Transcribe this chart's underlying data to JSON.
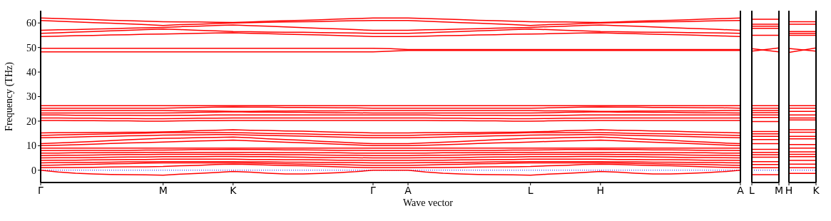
{
  "chart_data": [
    {
      "type": "line",
      "xlabel": "Wave vector",
      "ylabel": "Frequency (THz)",
      "color": "#ff0000",
      "line_style": "solid",
      "categories": [
        "Γ",
        null,
        null,
        null,
        null,
        null,
        null,
        "M",
        null,
        null,
        null,
        "K",
        null,
        null,
        null,
        null,
        null,
        null,
        null,
        "Γ",
        null,
        "A",
        null,
        null,
        null,
        null,
        null,
        null,
        "L",
        null,
        null,
        null,
        "H",
        null,
        null,
        null,
        null,
        null,
        null,
        null,
        "A"
      ],
      "ylim": [
        -5,
        65
      ],
      "yticks": [
        0,
        10,
        20,
        30,
        40,
        50,
        60
      ],
      "ref_lines": [
        {
          "axis": "y",
          "value": 0,
          "color": "#0000ff",
          "line_style": "dotted"
        }
      ],
      "series": [
        {
          "values": [
            62,
            61.8,
            61.6,
            61.4,
            61.1,
            60.9,
            60.7,
            60.5,
            60.4,
            60.4,
            60.3,
            60.2,
            60.4,
            60.7,
            60.9,
            61.1,
            61.3,
            61.6,
            61.8,
            62,
            62,
            62,
            61.8,
            61.6,
            61.4,
            61.1,
            60.9,
            60.7,
            60.5,
            60.4,
            60.4,
            60.3,
            60.2,
            60.4,
            60.7,
            60.9,
            61.1,
            61.3,
            61.6,
            61.8,
            62
          ]
        },
        {
          "values": [
            61,
            60.7,
            60.4,
            60.1,
            59.9,
            59.6,
            59.3,
            59,
            59.3,
            59.5,
            59.8,
            60,
            60.1,
            60.3,
            60.4,
            60.5,
            60.6,
            60.8,
            60.9,
            61,
            61,
            61,
            60.7,
            60.4,
            60.1,
            59.9,
            59.6,
            59.3,
            59,
            59.3,
            59.5,
            59.8,
            60,
            60.1,
            60.3,
            60.4,
            60.5,
            60.6,
            60.8,
            60.9,
            61
          ]
        },
        {
          "values": [
            57,
            57.2,
            57.3,
            57.5,
            57.7,
            57.9,
            58,
            58.2,
            58.5,
            58.7,
            59,
            59.2,
            58.9,
            58.7,
            58.4,
            58.1,
            57.8,
            57.6,
            57.3,
            57,
            57,
            57,
            57.2,
            57.3,
            57.5,
            57.7,
            57.9,
            58,
            58.2,
            58.5,
            58.7,
            59,
            59.2,
            58.9,
            58.7,
            58.4,
            58.1,
            57.8,
            57.6,
            57.3,
            57
          ]
        },
        {
          "values": [
            55.8,
            56,
            56.3,
            56.5,
            56.8,
            57,
            57.3,
            57.5,
            57.3,
            57,
            56.8,
            56.5,
            56.4,
            56.3,
            56.2,
            56.2,
            56.1,
            56,
            55.9,
            55.8,
            55.8,
            55.8,
            56,
            56.3,
            56.5,
            56.8,
            57,
            57.3,
            57.5,
            57.3,
            57,
            56.8,
            56.5,
            56.4,
            56.3,
            56.2,
            56.2,
            56.1,
            56,
            55.9,
            55.8
          ]
        },
        {
          "values": [
            54.5,
            54.6,
            54.8,
            54.9,
            55.1,
            55.2,
            55.4,
            55.5,
            55.6,
            55.8,
            55.9,
            56,
            55.8,
            55.6,
            55.4,
            55.3,
            55.1,
            54.9,
            54.7,
            54.5,
            54.5,
            54.5,
            54.6,
            54.8,
            54.9,
            55.1,
            55.2,
            55.4,
            55.5,
            55.6,
            55.8,
            55.9,
            56,
            55.8,
            55.6,
            55.4,
            55.3,
            55.1,
            54.9,
            54.7,
            54.5
          ]
        },
        {
          "values": [
            49.7,
            49.7,
            49.7,
            49.7,
            49.7,
            49.7,
            49.7,
            49.7,
            49.7,
            49.7,
            49.7,
            49.7,
            49.7,
            49.7,
            49.7,
            49.7,
            49.7,
            49.7,
            49.7,
            49.7,
            49.5,
            49.2,
            49.2,
            49.2,
            49.2,
            49.2,
            49.2,
            49.2,
            49.2,
            49.2,
            49.2,
            49.2,
            49.2,
            49.2,
            49.2,
            49.2,
            49.2,
            49.2,
            49.2,
            49.2,
            49.2
          ]
        },
        {
          "values": [
            48.2,
            48.2,
            48.2,
            48.2,
            48.2,
            48.2,
            48.2,
            48.2,
            48.2,
            48.2,
            48.2,
            48.2,
            48.2,
            48.2,
            48.2,
            48.2,
            48.2,
            48.2,
            48.2,
            48.2,
            48.5,
            48.8,
            48.8,
            48.8,
            48.8,
            48.8,
            48.8,
            48.8,
            48.8,
            48.8,
            48.8,
            48.8,
            48.8,
            48.8,
            48.8,
            48.8,
            48.8,
            48.8,
            48.8,
            48.8,
            48.8
          ]
        },
        {
          "values": [
            26.3,
            26.3,
            26.3,
            26.3,
            26.3,
            26.3,
            26.3,
            26.3,
            26.3,
            26.3,
            26.3,
            26.3,
            26.3,
            26.3,
            26.3,
            26.3,
            26.3,
            26.3,
            26.3,
            26.3,
            26.3,
            26.3,
            26.3,
            26.3,
            26.3,
            26.3,
            26.3,
            26.3,
            26.3,
            26.3,
            26.3,
            26.3,
            26.3,
            26.3,
            26.3,
            26.3,
            26.3,
            26.3,
            26.3,
            26.3,
            26.3
          ]
        },
        {
          "values": [
            25.3,
            25.3,
            25.3,
            25.3,
            25.3,
            25.3,
            25.3,
            25.3,
            25.4,
            25.6,
            25.7,
            25.8,
            25.7,
            25.7,
            25.6,
            25.6,
            25.5,
            25.4,
            25.4,
            25.3,
            25.3,
            25.3,
            25.3,
            25.3,
            25.3,
            25.3,
            25.3,
            25.3,
            25.3,
            25.4,
            25.6,
            25.7,
            25.8,
            25.7,
            25.7,
            25.6,
            25.6,
            25.5,
            25.4,
            25.4,
            25.3
          ]
        },
        {
          "values": [
            24.3,
            24.3,
            24.3,
            24.3,
            24.3,
            24.3,
            24.3,
            24.3,
            24.2,
            24.2,
            24.1,
            24,
            24,
            24.1,
            24.1,
            24.2,
            24.2,
            24.2,
            24.3,
            24.3,
            24.3,
            24.3,
            24.3,
            24.3,
            24.3,
            24.3,
            24.3,
            24.3,
            24.3,
            24.2,
            24.2,
            24.1,
            24,
            24,
            24.1,
            24.1,
            24.2,
            24.2,
            24.2,
            24.3,
            24.3
          ]
        },
        {
          "values": [
            23.3,
            23.3,
            23.3,
            23.3,
            23.3,
            23.3,
            23.3,
            23.3,
            23.4,
            23.6,
            23.7,
            23.8,
            23.7,
            23.7,
            23.6,
            23.6,
            23.5,
            23.4,
            23.4,
            23.3,
            23.3,
            23.3,
            23.3,
            23.3,
            23.3,
            23.3,
            23.3,
            23.3,
            23.3,
            23.4,
            23.6,
            23.7,
            23.8,
            23.7,
            23.7,
            23.6,
            23.6,
            23.5,
            23.4,
            23.4,
            23.3
          ]
        },
        {
          "values": [
            22.5,
            22.5,
            22.4,
            22.4,
            22.4,
            22.4,
            22.3,
            22.3,
            22.4,
            22.4,
            22.5,
            22.5,
            22.5,
            22.5,
            22.5,
            22.5,
            22.5,
            22.5,
            22.5,
            22.5,
            22.5,
            22.5,
            22.5,
            22.4,
            22.4,
            22.4,
            22.4,
            22.3,
            22.3,
            22.4,
            22.4,
            22.5,
            22.5,
            22.5,
            22.5,
            22.5,
            22.5,
            22.5,
            22.5,
            22.5,
            22.5
          ]
        },
        {
          "values": [
            21.3,
            21.3,
            21.2,
            21.2,
            21.1,
            21.1,
            21,
            21,
            21.1,
            21.2,
            21.2,
            21.3,
            21.3,
            21.3,
            21.3,
            21.3,
            21.3,
            21.3,
            21.3,
            21.3,
            21.3,
            21.3,
            21.3,
            21.2,
            21.2,
            21.1,
            21.1,
            21,
            21,
            21.1,
            21.2,
            21.2,
            21.3,
            21.3,
            21.3,
            21.3,
            21.3,
            21.3,
            21.3,
            21.3,
            21.3
          ]
        },
        {
          "values": [
            20.3,
            20.3,
            20.2,
            20.2,
            20.1,
            20.1,
            20,
            20,
            20.1,
            20.2,
            20.2,
            20.3,
            20.3,
            20.3,
            20.3,
            20.3,
            20.3,
            20.3,
            20.3,
            20.3,
            20.3,
            20.3,
            20.3,
            20.2,
            20.2,
            20.1,
            20.1,
            20,
            20,
            20.1,
            20.2,
            20.2,
            20.3,
            20.3,
            20.3,
            20.3,
            20.3,
            20.3,
            20.3,
            20.3,
            20.3
          ]
        },
        {
          "values": [
            15.2,
            15.3,
            15.3,
            15.4,
            15.4,
            15.5,
            15.5,
            15.6,
            15.8,
            16.1,
            16.3,
            16.5,
            16.3,
            16.2,
            16,
            15.9,
            15.7,
            15.5,
            15.4,
            15.2,
            15.2,
            15.2,
            15.3,
            15.3,
            15.4,
            15.4,
            15.5,
            15.5,
            15.6,
            15.8,
            16.1,
            16.3,
            16.5,
            16.3,
            16.2,
            16,
            15.9,
            15.7,
            15.5,
            15.4,
            15.2
          ]
        },
        {
          "values": [
            14.2,
            14.4,
            14.5,
            14.7,
            14.8,
            15,
            15.1,
            15.3,
            15.3,
            15.3,
            15.3,
            15.3,
            15.2,
            15,
            14.9,
            14.8,
            14.6,
            14.5,
            14.3,
            14.2,
            14.2,
            14.2,
            14.4,
            14.5,
            14.7,
            14.8,
            15,
            15.1,
            15.3,
            15.3,
            15.3,
            15.3,
            15.3,
            15.2,
            15,
            14.9,
            14.8,
            14.6,
            14.5,
            14.3,
            14.2
          ]
        },
        {
          "values": [
            13.2,
            13.4,
            13.5,
            13.7,
            13.8,
            14,
            14.1,
            14.3,
            14.4,
            14.4,
            14.5,
            14.5,
            14.3,
            14.2,
            14,
            13.9,
            13.7,
            13.5,
            13.4,
            13.2,
            13.2,
            13.2,
            13.4,
            13.5,
            13.7,
            13.8,
            14,
            14.1,
            14.3,
            14.4,
            14.4,
            14.5,
            14.5,
            14.3,
            14.2,
            14,
            13.9,
            13.7,
            13.5,
            13.4,
            13.2
          ]
        },
        {
          "values": [
            10.8,
            11.1,
            11.4,
            11.7,
            12.1,
            12.4,
            12.7,
            13,
            13.1,
            13.3,
            13.4,
            13.5,
            13.2,
            12.8,
            12.5,
            12.2,
            11.8,
            11.5,
            11.1,
            10.8,
            10.8,
            10.8,
            11.1,
            11.4,
            11.7,
            12.1,
            12.4,
            12.7,
            13,
            13.1,
            13.3,
            13.4,
            13.5,
            13.2,
            12.8,
            12.5,
            12.2,
            11.8,
            11.5,
            11.1,
            10.8
          ]
        },
        {
          "values": [
            10,
            10.2,
            10.4,
            10.6,
            10.9,
            11.1,
            11.3,
            11.5,
            11.7,
            11.9,
            12.1,
            12.3,
            12,
            11.7,
            11.4,
            11.2,
            10.9,
            10.6,
            10.3,
            10,
            10,
            10,
            10.2,
            10.4,
            10.6,
            10.9,
            11.1,
            11.3,
            11.5,
            11.7,
            11.9,
            12.1,
            12.3,
            12,
            11.7,
            11.4,
            11.2,
            10.9,
            10.6,
            10.3,
            10
          ]
        },
        {
          "values": [
            9,
            9,
            9,
            9,
            9,
            9,
            9,
            9,
            9,
            9,
            9,
            9,
            9,
            9,
            9,
            9,
            9,
            9,
            9,
            9,
            9,
            9,
            9,
            9,
            9,
            9,
            9,
            9,
            9,
            9,
            9,
            9,
            9,
            9,
            9,
            9,
            9,
            9,
            9,
            9,
            9
          ]
        },
        {
          "values": [
            8,
            8,
            8.1,
            8.1,
            8.1,
            8.1,
            8.2,
            8.2,
            8.3,
            8.4,
            8.4,
            8.5,
            8.4,
            8.4,
            8.3,
            8.3,
            8.2,
            8.1,
            8.1,
            8,
            8,
            8,
            8,
            8.1,
            8.1,
            8.1,
            8.1,
            8.2,
            8.2,
            8.3,
            8.4,
            8.4,
            8.5,
            8.4,
            8.4,
            8.3,
            8.3,
            8.2,
            8.1,
            8.1,
            8
          ]
        },
        {
          "values": [
            7,
            7,
            7.1,
            7.1,
            7.2,
            7.2,
            7.3,
            7.3,
            7.3,
            7.3,
            7.3,
            7.3,
            7.3,
            7.2,
            7.2,
            7.2,
            7.1,
            7.1,
            7,
            7,
            7,
            7,
            7,
            7.1,
            7.1,
            7.2,
            7.2,
            7.3,
            7.3,
            7.3,
            7.3,
            7.3,
            7.3,
            7.3,
            7.2,
            7.2,
            7.2,
            7.1,
            7.1,
            7,
            7
          ]
        },
        {
          "values": [
            6,
            6.1,
            6.1,
            6.2,
            6.3,
            6.4,
            6.4,
            6.5,
            6.5,
            6.5,
            6.5,
            6.5,
            6.4,
            6.4,
            6.3,
            6.3,
            6.2,
            6.1,
            6.1,
            6,
            6,
            6,
            6.1,
            6.1,
            6.2,
            6.3,
            6.4,
            6.4,
            6.5,
            6.5,
            6.5,
            6.5,
            6.5,
            6.4,
            6.4,
            6.3,
            6.3,
            6.2,
            6.1,
            6.1,
            6
          ]
        },
        {
          "values": [
            5,
            5.1,
            5.1,
            5.2,
            5.3,
            5.4,
            5.4,
            5.5,
            5.5,
            5.5,
            5.6,
            5.6,
            5.5,
            5.5,
            5.4,
            5.3,
            5.2,
            5.2,
            5.1,
            5,
            5,
            5,
            5.1,
            5.1,
            5.2,
            5.3,
            5.4,
            5.4,
            5.5,
            5.5,
            5.5,
            5.6,
            5.6,
            5.5,
            5.5,
            5.4,
            5.3,
            5.2,
            5.2,
            5.1,
            5
          ]
        },
        {
          "values": [
            4,
            4.1,
            4.1,
            4.2,
            4.3,
            4.4,
            4.4,
            4.5,
            4.5,
            4.5,
            4.5,
            4.5,
            4.4,
            4.4,
            4.3,
            4.3,
            4.2,
            4.1,
            4.1,
            4,
            4,
            4,
            4.1,
            4.1,
            4.2,
            4.3,
            4.4,
            4.4,
            4.5,
            4.5,
            4.5,
            4.5,
            4.5,
            4.4,
            4.4,
            4.3,
            4.3,
            4.2,
            4.1,
            4.1,
            4
          ]
        },
        {
          "values": [
            3,
            3.1,
            3.1,
            3.2,
            3.3,
            3.4,
            3.4,
            3.5,
            3.5,
            3.5,
            3.5,
            3.5,
            3.4,
            3.4,
            3.3,
            3.3,
            3.2,
            3.1,
            3.1,
            3,
            3,
            3,
            3.1,
            3.1,
            3.2,
            3.3,
            3.4,
            3.4,
            3.5,
            3.5,
            3.5,
            3.5,
            3.5,
            3.4,
            3.4,
            3.3,
            3.3,
            3.2,
            3.1,
            3.1,
            3
          ]
        },
        {
          "values": [
            2,
            2.1,
            2.3,
            2.4,
            2.6,
            2.7,
            2.9,
            3,
            3,
            3,
            3,
            3,
            2.9,
            2.8,
            2.6,
            2.5,
            2.4,
            2.3,
            2.1,
            2,
            2,
            2,
            2.1,
            2.3,
            2.4,
            2.6,
            2.7,
            2.9,
            3,
            3,
            3,
            3,
            3,
            2.9,
            2.8,
            2.6,
            2.5,
            2.4,
            2.3,
            2.1,
            2
          ]
        },
        {
          "values": [
            1,
            1.1,
            1.1,
            1.2,
            1.3,
            1.4,
            1.4,
            1.5,
            1.8,
            2,
            2.3,
            2.5,
            2.3,
            2.1,
            1.9,
            1.8,
            1.6,
            1.4,
            1.2,
            1,
            1,
            1,
            1.1,
            1.1,
            1.2,
            1.3,
            1.4,
            1.4,
            1.5,
            1.8,
            2,
            2.3,
            2.5,
            2.3,
            2.1,
            1.9,
            1.8,
            1.6,
            1.4,
            1.2,
            1
          ]
        },
        {
          "values": [
            0,
            -0.7,
            -1.2,
            -1.5,
            -1.7,
            -1.8,
            -1.9,
            -2,
            -1.6,
            -1.3,
            -0.9,
            -0.5,
            -0.8,
            -1.2,
            -1.5,
            -1.5,
            -1.3,
            -1,
            -0.6,
            0,
            0,
            0,
            -0.7,
            -1.2,
            -1.5,
            -1.7,
            -1.8,
            -1.9,
            -2,
            -1.6,
            -1.3,
            -0.9,
            -0.5,
            -0.8,
            -1.2,
            -1.5,
            -1.5,
            -1.3,
            -1,
            -0.6,
            0
          ]
        }
      ]
    },
    {
      "type": "line",
      "color": "#ff0000",
      "line_style": "solid",
      "tick_labels": "x",
      "categories": [
        "L",
        "M"
      ],
      "ylim": [
        -5,
        65
      ],
      "yticks": [
        0,
        10,
        20,
        30,
        40,
        50,
        60
      ],
      "ref_lines": [
        {
          "axis": "y",
          "value": 0,
          "color": "#0000ff",
          "line_style": "dotted"
        }
      ],
      "series": [
        {
          "values": [
            61.5,
            61.5
          ]
        },
        {
          "values": [
            59.5,
            59.5
          ]
        },
        {
          "values": [
            58.7,
            58.7
          ]
        },
        {
          "values": [
            57.8,
            57.8
          ]
        },
        {
          "values": [
            55,
            55
          ]
        },
        {
          "values": [
            48.5,
            49.8
          ]
        },
        {
          "values": [
            49.5,
            48.2
          ]
        },
        {
          "values": [
            26.3,
            26.3
          ]
        },
        {
          "values": [
            25.3,
            25.3
          ]
        },
        {
          "values": [
            24.3,
            24.3
          ]
        },
        {
          "values": [
            23.5,
            23.5
          ]
        },
        {
          "values": [
            22.5,
            22.5
          ]
        },
        {
          "values": [
            21.5,
            21.5
          ]
        },
        {
          "values": [
            19.8,
            19.8
          ]
        },
        {
          "values": [
            15.8,
            15.8
          ]
        },
        {
          "values": [
            14.8,
            14.8
          ]
        },
        {
          "values": [
            13.8,
            13.8
          ]
        },
        {
          "values": [
            12.5,
            12.5
          ]
        },
        {
          "values": [
            10.8,
            10.8
          ]
        },
        {
          "values": [
            8.5,
            8.5
          ]
        },
        {
          "values": [
            7.3,
            7.3
          ]
        },
        {
          "values": [
            6.3,
            6.3
          ]
        },
        {
          "values": [
            5.3,
            5.3
          ]
        },
        {
          "values": [
            3.5,
            3.5
          ]
        },
        {
          "values": [
            2.3,
            2.3
          ]
        },
        {
          "values": [
            1,
            1
          ]
        },
        {
          "values": [
            -1.8,
            -1.8
          ]
        }
      ]
    },
    {
      "type": "line",
      "color": "#ff0000",
      "line_style": "solid",
      "tick_labels": "x",
      "categories": [
        "H",
        "K"
      ],
      "ylim": [
        -5,
        65
      ],
      "yticks": [
        0,
        10,
        20,
        30,
        40,
        50,
        60
      ],
      "ref_lines": [
        {
          "axis": "y",
          "value": 0,
          "color": "#0000ff",
          "line_style": "dotted"
        }
      ],
      "series": [
        {
          "values": [
            60.5,
            60.5
          ]
        },
        {
          "values": [
            59.5,
            59.5
          ]
        },
        {
          "values": [
            56.5,
            56.5
          ]
        },
        {
          "values": [
            55.8,
            55.8
          ]
        },
        {
          "values": [
            55,
            55
          ]
        },
        {
          "values": [
            48,
            49.8
          ]
        },
        {
          "values": [
            49.6,
            48.5
          ]
        },
        {
          "values": [
            26.3,
            26.3
          ]
        },
        {
          "values": [
            25.3,
            25.3
          ]
        },
        {
          "values": [
            24,
            24
          ]
        },
        {
          "values": [
            22.5,
            22.5
          ]
        },
        {
          "values": [
            21.3,
            21.3
          ]
        },
        {
          "values": [
            20.5,
            20.5
          ]
        },
        {
          "values": [
            16.5,
            16.5
          ]
        },
        {
          "values": [
            15.5,
            15.5
          ]
        },
        {
          "values": [
            13.8,
            13.8
          ]
        },
        {
          "values": [
            12.8,
            12.8
          ]
        },
        {
          "values": [
            10.5,
            10.5
          ]
        },
        {
          "values": [
            9,
            9
          ]
        },
        {
          "values": [
            7.5,
            7.5
          ]
        },
        {
          "values": [
            6.5,
            6.5
          ]
        },
        {
          "values": [
            5.5,
            5.5
          ]
        },
        {
          "values": [
            4,
            4
          ]
        },
        {
          "values": [
            2.5,
            2.5
          ]
        },
        {
          "values": [
            1,
            1
          ]
        },
        {
          "values": [
            -1.3,
            -1.3
          ]
        }
      ]
    }
  ]
}
